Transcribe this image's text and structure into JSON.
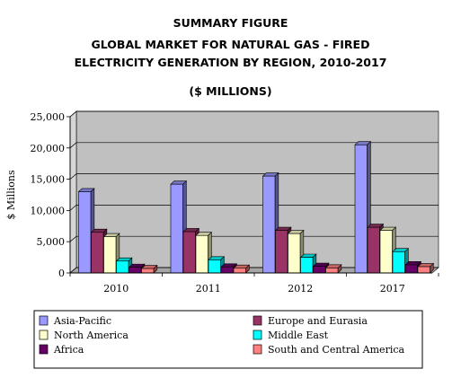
{
  "chart_data": {
    "type": "bar",
    "title_lines": [
      "SUMMARY FIGURE",
      "GLOBAL MARKET FOR NATURAL GAS - FIRED",
      "ELECTRICITY GENERATION  BY REGION, 2010-2017",
      "($ MILLIONS)"
    ],
    "ylabel": "$ Millions",
    "xlabel": "",
    "ylim": [
      0,
      25000
    ],
    "yticks": [
      "0",
      "5,000",
      "10,000",
      "15,000",
      "20,000",
      "25,000"
    ],
    "categories": [
      "2010",
      "2011",
      "2012",
      "2017"
    ],
    "grid": true,
    "legend_position": "bottom",
    "series": [
      {
        "name": "Asia-Pacific",
        "color": "#9999ff",
        "values": [
          13000,
          14200,
          15500,
          20500
        ]
      },
      {
        "name": "Europe and Eurasia",
        "color": "#993366",
        "values": [
          6500,
          6600,
          6800,
          7300
        ]
      },
      {
        "name": "North America",
        "color": "#ffffcc",
        "values": [
          5800,
          6000,
          6300,
          6800
        ]
      },
      {
        "name": "Middle East",
        "color": "#00ffff",
        "values": [
          1900,
          2100,
          2500,
          3400
        ]
      },
      {
        "name": "Africa",
        "color": "#660066",
        "values": [
          900,
          950,
          1050,
          1300
        ]
      },
      {
        "name": "South and Central America",
        "color": "#ff8080",
        "values": [
          700,
          750,
          800,
          1000
        ]
      }
    ]
  }
}
